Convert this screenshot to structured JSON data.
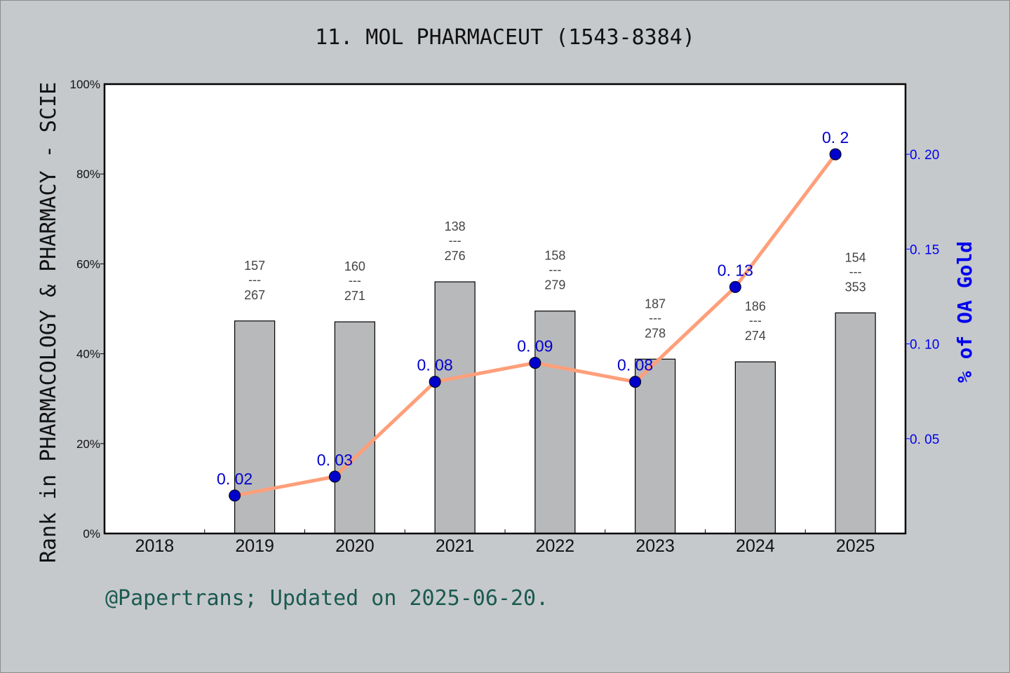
{
  "title": "11. MOL PHARMACEUT (1543-8384)",
  "footer": "@Papertrans; Updated on 2025-06-20.",
  "colors": {
    "background": "#c6c9cc",
    "plot_bg": "#ffffff",
    "bar_fill": "#b8b9bb",
    "line": "#ff9f7a",
    "point": "#0000cc",
    "right_axis": "#0000ee",
    "footer": "#1a5a50"
  },
  "chart_data": {
    "type": "bar+line",
    "title": "11. MOL PHARMACEUT (1543-8384)",
    "xlabel": "",
    "ylabel": "Rank in PHARMACOLOGY & PHARMACY - SCIE",
    "ylabel_right": "% of OA Gold",
    "categories": [
      "2018",
      "2019",
      "2020",
      "2021",
      "2022",
      "2023",
      "2024",
      "2025"
    ],
    "ylim": [
      0,
      100
    ],
    "ylim_right": [
      0,
      0.237
    ],
    "yticks_left": [
      "0%",
      "20%",
      "40%",
      "60%",
      "80%",
      "100%"
    ],
    "yticks_right": [
      "0.05",
      "0.10",
      "0.15",
      "0.20"
    ],
    "grid": false,
    "series": [
      {
        "name": "Rank percentile (bar)",
        "axis": "left",
        "type": "bar",
        "values": [
          null,
          47.3,
          47.1,
          56.0,
          49.5,
          38.8,
          38.2,
          49.1
        ],
        "labels": [
          null,
          {
            "rank": "157",
            "total": "267"
          },
          {
            "rank": "160",
            "total": "271"
          },
          {
            "rank": "138",
            "total": "276"
          },
          {
            "rank": "158",
            "total": "279"
          },
          {
            "rank": "187",
            "total": "278"
          },
          {
            "rank": "186",
            "total": "274"
          },
          {
            "rank": "154",
            "total": "353"
          }
        ]
      },
      {
        "name": "% of OA Gold",
        "axis": "right",
        "type": "line",
        "values": [
          null,
          0.02,
          0.03,
          0.08,
          0.09,
          0.08,
          0.13,
          0.2
        ],
        "labels": [
          null,
          "0.02",
          "0.03",
          "0.08",
          "0.09",
          "0.08",
          "0.13",
          "0.2"
        ]
      }
    ]
  }
}
